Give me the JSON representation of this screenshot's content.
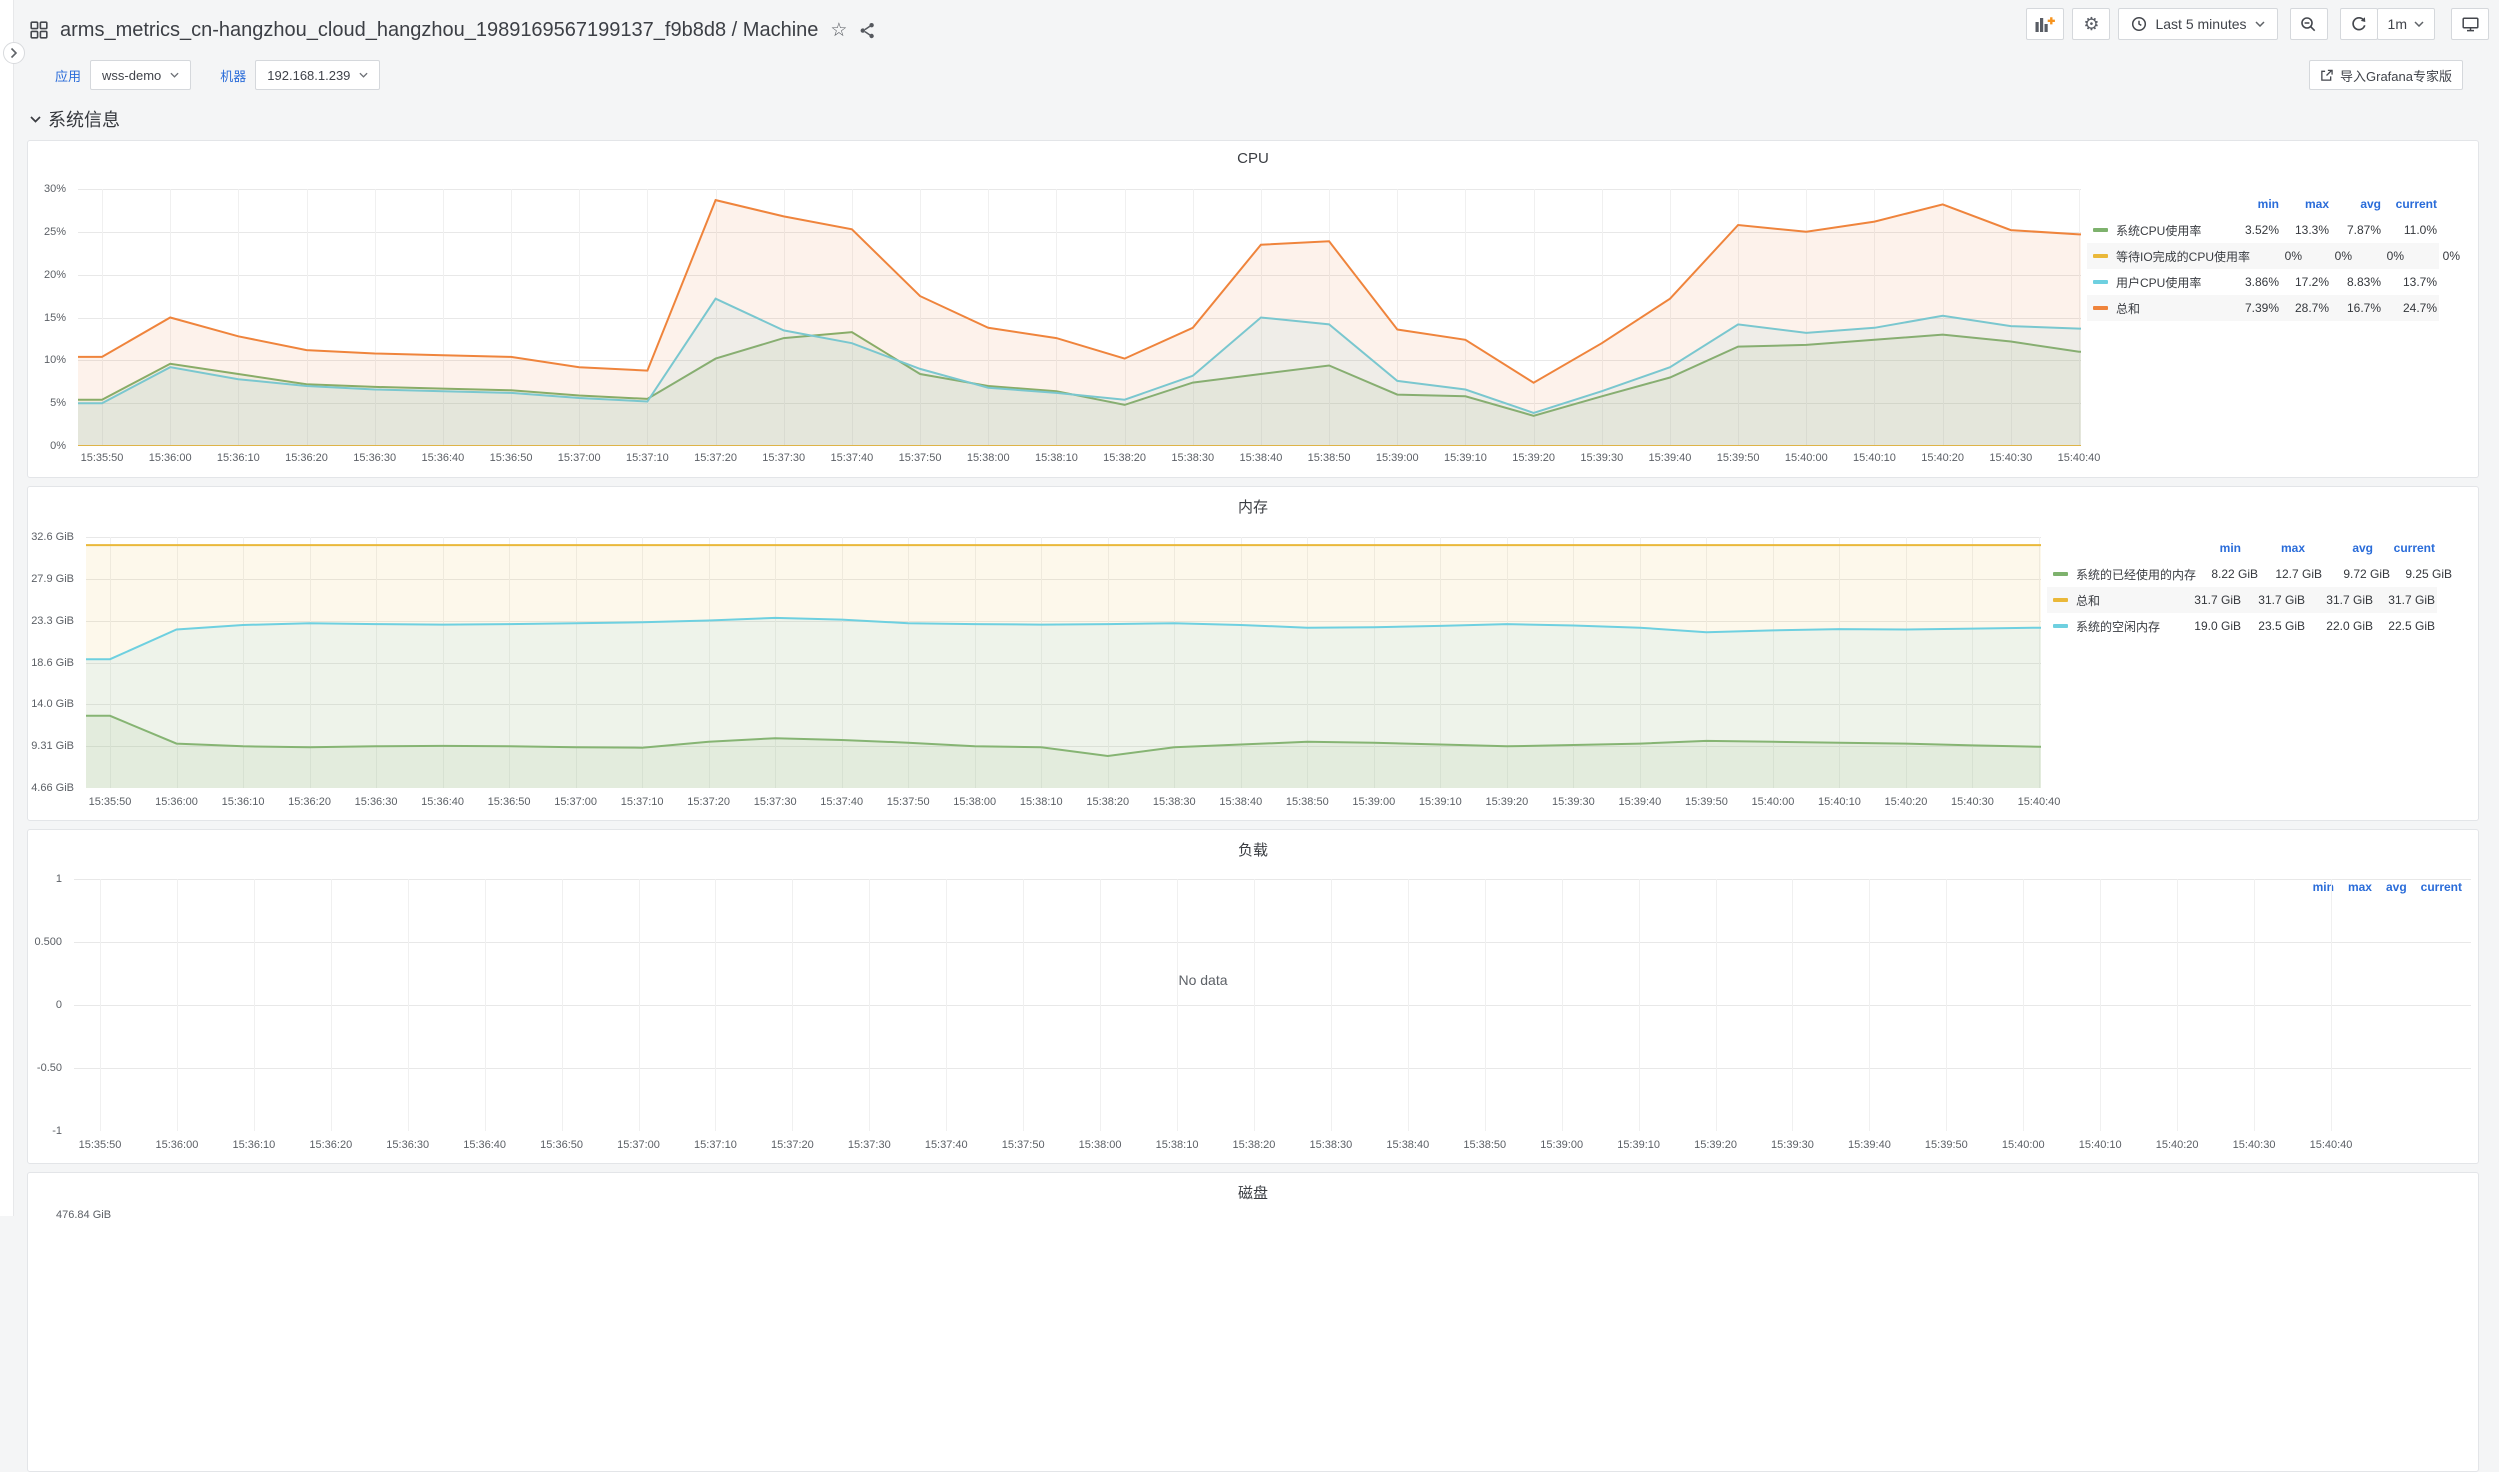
{
  "header": {
    "dashboard_title": "arms_metrics_cn-hangzhou_cloud_hangzhou_1989169567199137_f9b8d8",
    "separator": "/",
    "page_title": "Machine"
  },
  "nav": {
    "time_range": "Last 5 minutes",
    "refresh_interval": "1m"
  },
  "submenu": {
    "variables": [
      {
        "label": "应用",
        "value": "wss-demo"
      },
      {
        "label": "机器",
        "value": "192.168.1.239"
      }
    ],
    "import_label": "导入Grafana专家版"
  },
  "section": {
    "title": "系统信息"
  },
  "legend_headers": [
    "min",
    "max",
    "avg",
    "current"
  ],
  "no_data_label": "No data",
  "colors": {
    "green": "#7EB26D",
    "yellow": "#EAB839",
    "cyan": "#6ED0E0",
    "orange": "#EF843C",
    "link_blue": "#2a6cd9"
  },
  "chart_data": [
    {
      "panel": "cpu",
      "type": "line",
      "title": "CPU",
      "ylim": [
        0,
        30
      ],
      "yticks": [
        "0%",
        "5%",
        "10%",
        "15%",
        "20%",
        "25%",
        "30%"
      ],
      "ytick_values": [
        0,
        5,
        10,
        15,
        20,
        25,
        30
      ],
      "x": [
        "15:35:50",
        "15:36:00",
        "15:36:10",
        "15:36:20",
        "15:36:30",
        "15:36:40",
        "15:36:50",
        "15:37:00",
        "15:37:10",
        "15:37:20",
        "15:37:30",
        "15:37:40",
        "15:37:50",
        "15:38:00",
        "15:38:10",
        "15:38:20",
        "15:38:30",
        "15:38:40",
        "15:38:50",
        "15:39:00",
        "15:39:10",
        "15:39:20",
        "15:39:30",
        "15:39:40",
        "15:39:50",
        "15:40:00",
        "15:40:10",
        "15:40:20",
        "15:40:30",
        "15:40:40"
      ],
      "legend_position": "right",
      "series": [
        {
          "name": "系统CPU使用率",
          "color": "#7EB26D",
          "values": [
            5.4,
            9.6,
            8.4,
            7.2,
            6.9,
            6.7,
            6.5,
            5.9,
            5.5,
            10.2,
            12.6,
            13.3,
            8.4,
            7.0,
            6.4,
            4.8,
            7.4,
            8.4,
            9.4,
            6.0,
            5.8,
            3.52,
            5.8,
            8.0,
            11.6,
            11.8,
            12.4,
            13.0,
            12.2,
            11.0
          ],
          "stats": {
            "min": "3.52%",
            "max": "13.3%",
            "avg": "7.87%",
            "current": "11.0%"
          }
        },
        {
          "name": "等待IO完成的CPU使用率",
          "color": "#EAB839",
          "values": [
            0,
            0,
            0,
            0,
            0,
            0,
            0,
            0,
            0,
            0,
            0,
            0,
            0,
            0,
            0,
            0,
            0,
            0,
            0,
            0,
            0,
            0,
            0,
            0,
            0,
            0,
            0,
            0,
            0,
            0
          ],
          "stats": {
            "min": "0%",
            "max": "0%",
            "avg": "0%",
            "current": "0%"
          }
        },
        {
          "name": "用户CPU使用率",
          "color": "#6ED0E0",
          "values": [
            5.0,
            9.2,
            7.8,
            7.0,
            6.6,
            6.4,
            6.2,
            5.6,
            5.2,
            17.2,
            13.5,
            12.0,
            9.0,
            6.8,
            6.2,
            5.4,
            8.2,
            15.0,
            14.2,
            7.6,
            6.6,
            3.86,
            6.4,
            9.2,
            14.2,
            13.2,
            13.8,
            15.2,
            14.0,
            13.7
          ],
          "stats": {
            "min": "3.86%",
            "max": "17.2%",
            "avg": "8.83%",
            "current": "13.7%"
          }
        },
        {
          "name": "总和",
          "color": "#EF843C",
          "values": [
            10.4,
            15.0,
            12.8,
            11.2,
            10.8,
            10.6,
            10.4,
            9.2,
            8.8,
            28.7,
            26.8,
            25.3,
            17.5,
            13.8,
            12.6,
            10.2,
            13.8,
            23.5,
            23.9,
            13.6,
            12.4,
            7.39,
            12.0,
            17.2,
            25.8,
            25.0,
            26.2,
            28.2,
            25.2,
            24.7
          ],
          "stats": {
            "min": "7.39%",
            "max": "28.7%",
            "avg": "16.7%",
            "current": "24.7%"
          }
        }
      ]
    },
    {
      "panel": "mem",
      "type": "line",
      "title": "内存",
      "ylim": [
        4.66,
        32.6
      ],
      "yticks": [
        "4.66 GiB",
        "9.31 GiB",
        "14.0 GiB",
        "18.6 GiB",
        "23.3 GiB",
        "27.9 GiB",
        "32.6 GiB"
      ],
      "ytick_values": [
        4.66,
        9.31,
        14.0,
        18.6,
        23.3,
        27.9,
        32.6
      ],
      "x": [
        "15:35:50",
        "15:36:00",
        "15:36:10",
        "15:36:20",
        "15:36:30",
        "15:36:40",
        "15:36:50",
        "15:37:00",
        "15:37:10",
        "15:37:20",
        "15:37:30",
        "15:37:40",
        "15:37:50",
        "15:38:00",
        "15:38:10",
        "15:38:20",
        "15:38:30",
        "15:38:40",
        "15:38:50",
        "15:39:00",
        "15:39:10",
        "15:39:20",
        "15:39:30",
        "15:39:40",
        "15:39:50",
        "15:40:00",
        "15:40:10",
        "15:40:20",
        "15:40:30",
        "15:40:40"
      ],
      "legend_position": "right",
      "series": [
        {
          "name": "系统的已经使用的内存",
          "color": "#7EB26D",
          "values": [
            12.7,
            9.6,
            9.3,
            9.2,
            9.3,
            9.35,
            9.3,
            9.2,
            9.15,
            9.8,
            10.2,
            10.0,
            9.7,
            9.3,
            9.2,
            8.22,
            9.2,
            9.5,
            9.8,
            9.7,
            9.5,
            9.3,
            9.45,
            9.6,
            9.9,
            9.8,
            9.7,
            9.6,
            9.4,
            9.25
          ],
          "stats": {
            "min": "8.22 GiB",
            "max": "12.7 GiB",
            "avg": "9.72 GiB",
            "current": "9.25 GiB"
          }
        },
        {
          "name": "总和",
          "color": "#EAB839",
          "values": [
            31.7,
            31.7,
            31.7,
            31.7,
            31.7,
            31.7,
            31.7,
            31.7,
            31.7,
            31.7,
            31.7,
            31.7,
            31.7,
            31.7,
            31.7,
            31.7,
            31.7,
            31.7,
            31.7,
            31.7,
            31.7,
            31.7,
            31.7,
            31.7,
            31.7,
            31.7,
            31.7,
            31.7,
            31.7,
            31.7
          ],
          "stats": {
            "min": "31.7 GiB",
            "max": "31.7 GiB",
            "avg": "31.7 GiB",
            "current": "31.7 GiB"
          }
        },
        {
          "name": "系统的空闲内存",
          "color": "#6ED0E0",
          "values": [
            19.0,
            22.3,
            22.8,
            23.0,
            22.9,
            22.85,
            22.9,
            23.0,
            23.1,
            23.3,
            23.6,
            23.4,
            23.0,
            22.9,
            22.85,
            22.9,
            23.0,
            22.8,
            22.5,
            22.55,
            22.7,
            22.9,
            22.75,
            22.5,
            22.0,
            22.2,
            22.35,
            22.3,
            22.4,
            22.5
          ],
          "stats": {
            "min": "19.0 GiB",
            "max": "23.5 GiB",
            "avg": "22.0 GiB",
            "current": "22.5 GiB"
          }
        }
      ]
    },
    {
      "panel": "load",
      "type": "line",
      "title": "负载",
      "ylim": [
        -1,
        1
      ],
      "yticks": [
        "-1",
        "-0.50",
        "0",
        "0.500",
        "1"
      ],
      "ytick_values": [
        -1,
        -0.5,
        0,
        0.5,
        1
      ],
      "x": [
        "15:35:50",
        "15:36:00",
        "15:36:10",
        "15:36:20",
        "15:36:30",
        "15:36:40",
        "15:36:50",
        "15:37:00",
        "15:37:10",
        "15:37:20",
        "15:37:30",
        "15:37:40",
        "15:37:50",
        "15:38:00",
        "15:38:10",
        "15:38:20",
        "15:38:30",
        "15:38:40",
        "15:38:50",
        "15:39:00",
        "15:39:10",
        "15:39:20",
        "15:39:30",
        "15:39:40",
        "15:39:50",
        "15:40:00",
        "15:40:10",
        "15:40:20",
        "15:40:30",
        "15:40:40"
      ],
      "legend_position": "top-right",
      "no_data": true,
      "series": []
    },
    {
      "panel": "disk",
      "type": "line",
      "title": "磁盘",
      "partial_tick": "476.84 GiB"
    }
  ]
}
